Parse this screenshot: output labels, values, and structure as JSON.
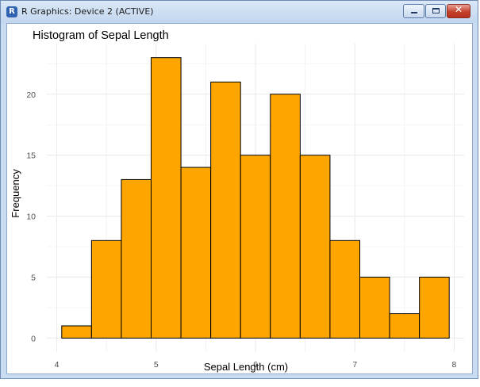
{
  "window": {
    "title": "R Graphics: Device 2 (ACTIVE)",
    "app_icon": "r-logo-icon",
    "controls": {
      "minimize": "minimize-icon",
      "maximize": "maximize-icon",
      "close": "close-icon",
      "close_glyph": "✕"
    }
  },
  "chart_data": {
    "type": "bar",
    "title": "Histogram of Sepal Length",
    "xlabel": "Sepal Length (cm)",
    "ylabel": "Frequency",
    "bin_width": 0.3,
    "bins": [
      {
        "start": 4.05,
        "end": 4.35,
        "count": 1
      },
      {
        "start": 4.35,
        "end": 4.65,
        "count": 8
      },
      {
        "start": 4.65,
        "end": 4.95,
        "count": 13
      },
      {
        "start": 4.95,
        "end": 5.25,
        "count": 23
      },
      {
        "start": 5.25,
        "end": 5.55,
        "count": 14
      },
      {
        "start": 5.55,
        "end": 5.85,
        "count": 21
      },
      {
        "start": 5.85,
        "end": 6.15,
        "count": 15
      },
      {
        "start": 6.15,
        "end": 6.45,
        "count": 20
      },
      {
        "start": 6.45,
        "end": 6.75,
        "count": 15
      },
      {
        "start": 6.75,
        "end": 7.05,
        "count": 8
      },
      {
        "start": 7.05,
        "end": 7.35,
        "count": 5
      },
      {
        "start": 7.35,
        "end": 7.65,
        "count": 2
      },
      {
        "start": 7.65,
        "end": 7.95,
        "count": 5
      }
    ],
    "x_ticks": [
      4,
      5,
      6,
      7,
      8
    ],
    "y_ticks": [
      0,
      5,
      10,
      15,
      20
    ],
    "xlim": [
      3.9,
      8.1
    ],
    "ylim": [
      -1.15,
      24.15
    ],
    "bar_fill": "#FFA500",
    "bar_edge": "#000000",
    "grid": true,
    "grid_color": "#EBEBEB",
    "background": "#FFFFFF"
  }
}
